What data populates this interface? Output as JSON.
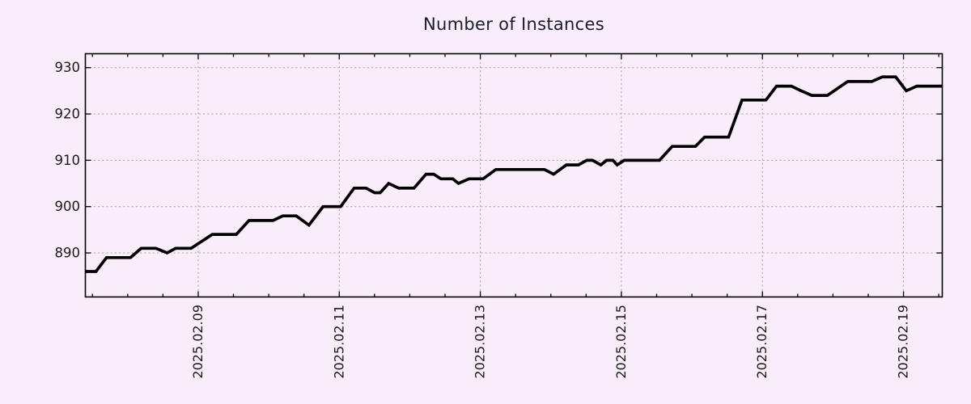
{
  "chart_data": {
    "type": "line",
    "title": "Number of Instances",
    "xlabel": "",
    "ylabel": "",
    "legend": "none",
    "grid": "dotted",
    "x_unit": "day of February 2025 (fractional)",
    "xlim": [
      7.4,
      19.55
    ],
    "ylim": [
      880.5,
      933.0
    ],
    "y_ticks": [
      {
        "value": 890,
        "label": "890"
      },
      {
        "value": 900,
        "label": "900"
      },
      {
        "value": 910,
        "label": "910"
      },
      {
        "value": 920,
        "label": "920"
      },
      {
        "value": 930,
        "label": "930"
      }
    ],
    "x_ticks_major": [
      {
        "day": 9,
        "label": "2025.02.09"
      },
      {
        "day": 11,
        "label": "2025.02.11"
      },
      {
        "day": 13,
        "label": "2025.02.13"
      },
      {
        "day": 15,
        "label": "2025.02.15"
      },
      {
        "day": 17,
        "label": "2025.02.17"
      },
      {
        "day": 19,
        "label": "2025.02.19"
      }
    ],
    "x_minor_step": 0.5,
    "series": [
      {
        "name": "instances",
        "points": [
          [
            7.4,
            886
          ],
          [
            7.55,
            886
          ],
          [
            7.7,
            889
          ],
          [
            8.04,
            889
          ],
          [
            8.19,
            891
          ],
          [
            8.4,
            891
          ],
          [
            8.56,
            890
          ],
          [
            8.68,
            891
          ],
          [
            8.9,
            891
          ],
          [
            9.2,
            894
          ],
          [
            9.54,
            894
          ],
          [
            9.72,
            897
          ],
          [
            10.06,
            897
          ],
          [
            10.2,
            898
          ],
          [
            10.39,
            898
          ],
          [
            10.57,
            896
          ],
          [
            10.77,
            900
          ],
          [
            11.02,
            900
          ],
          [
            11.21,
            904
          ],
          [
            11.38,
            904
          ],
          [
            11.5,
            903
          ],
          [
            11.58,
            903
          ],
          [
            11.7,
            905
          ],
          [
            11.84,
            904
          ],
          [
            12.06,
            904
          ],
          [
            12.23,
            907
          ],
          [
            12.34,
            907
          ],
          [
            12.44,
            906
          ],
          [
            12.61,
            906
          ],
          [
            12.69,
            905
          ],
          [
            12.84,
            906
          ],
          [
            13.04,
            906
          ],
          [
            13.22,
            908
          ],
          [
            13.91,
            908
          ],
          [
            14.04,
            907
          ],
          [
            14.22,
            909
          ],
          [
            14.39,
            909
          ],
          [
            14.51,
            910
          ],
          [
            14.59,
            910
          ],
          [
            14.71,
            909
          ],
          [
            14.79,
            910
          ],
          [
            14.88,
            910
          ],
          [
            14.94,
            909
          ],
          [
            15.04,
            910
          ],
          [
            15.54,
            910
          ],
          [
            15.72,
            913
          ],
          [
            16.05,
            913
          ],
          [
            16.18,
            915
          ],
          [
            16.52,
            915
          ],
          [
            16.71,
            923
          ],
          [
            17.05,
            923
          ],
          [
            17.2,
            926
          ],
          [
            17.41,
            926
          ],
          [
            17.55,
            925
          ],
          [
            17.7,
            924
          ],
          [
            17.92,
            924
          ],
          [
            18.21,
            927
          ],
          [
            18.55,
            927
          ],
          [
            18.7,
            928
          ],
          [
            18.89,
            928
          ],
          [
            19.04,
            925
          ],
          [
            19.19,
            926
          ],
          [
            19.55,
            926
          ]
        ]
      }
    ],
    "colors": {
      "background": "#f9edfa",
      "line": "#000000",
      "grid": "#a0a0a0",
      "border": "#000000",
      "tick": "#000000",
      "text": "#1a1a1a"
    }
  }
}
